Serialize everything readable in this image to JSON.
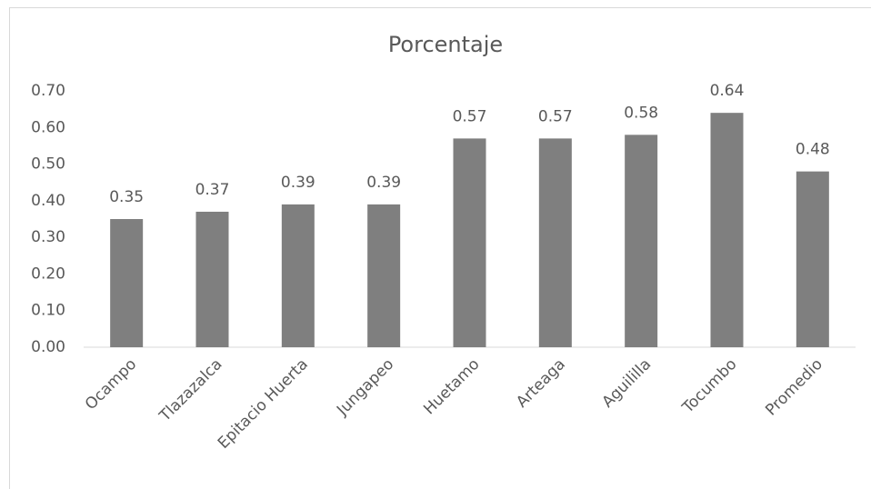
{
  "chart_data": {
    "type": "bar",
    "title": "Porcentaje",
    "categories": [
      "Ocampo",
      "Tlazazalca",
      "Epitacio Huerta",
      "Jungapeo",
      "Huetamo",
      "Arteaga",
      "Aguililla",
      "Tocumbo",
      "Promedio"
    ],
    "values": [
      0.35,
      0.37,
      0.39,
      0.39,
      0.57,
      0.57,
      0.58,
      0.64,
      0.48
    ],
    "color": "#7f7f7f",
    "ylim": [
      0,
      0.7
    ],
    "yticks": [
      {
        "value": 0,
        "label": "0.00"
      },
      {
        "value": 0.1,
        "label": "0.10"
      },
      {
        "value": 0.2,
        "label": "0.20"
      },
      {
        "value": 0.3,
        "label": "0.30"
      },
      {
        "value": 0.4,
        "label": "0.40"
      },
      {
        "value": 0.5,
        "label": "0.50"
      },
      {
        "value": 0.6,
        "label": "0.60"
      },
      {
        "value": 0.7,
        "label": "0.70"
      }
    ],
    "grid": false
  }
}
